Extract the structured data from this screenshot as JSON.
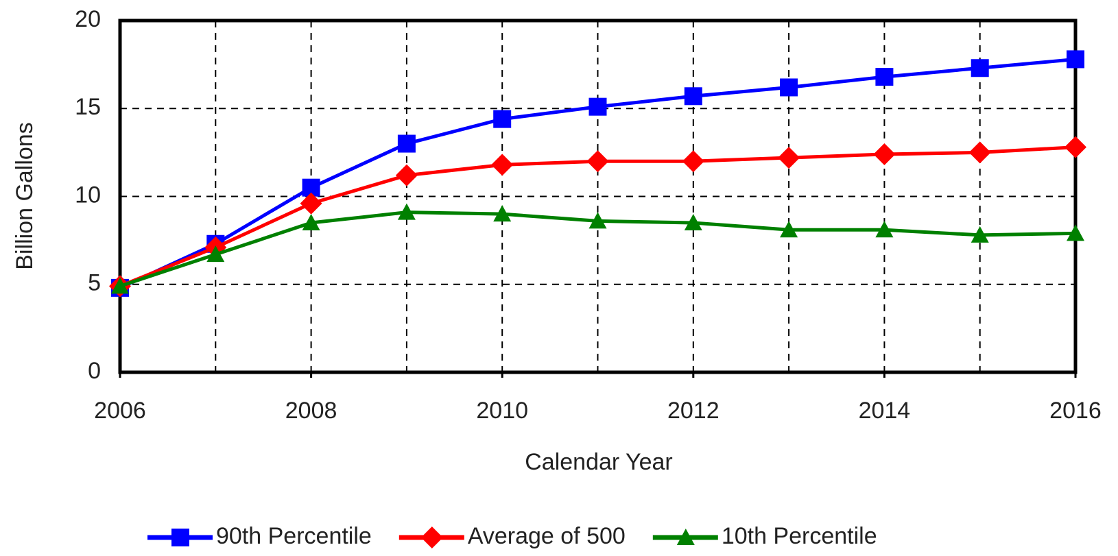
{
  "chart_data": {
    "type": "line",
    "x_label": "Calendar Year",
    "y_label": "Billion Gallons",
    "x": [
      2006,
      2007,
      2008,
      2009,
      2010,
      2011,
      2012,
      2013,
      2014,
      2015,
      2016
    ],
    "series": [
      {
        "name": "90th Percentile",
        "color": "#0000ff",
        "marker": "square",
        "values": [
          4.8,
          7.3,
          10.5,
          13.0,
          14.4,
          15.1,
          15.7,
          16.2,
          16.8,
          17.3,
          17.8
        ]
      },
      {
        "name": "Average of 500",
        "color": "#ff0000",
        "marker": "diamond",
        "values": [
          4.9,
          7.1,
          9.6,
          11.2,
          11.8,
          12.0,
          12.0,
          12.2,
          12.4,
          12.5,
          12.8
        ]
      },
      {
        "name": "10th Percentile",
        "color": "#008000",
        "marker": "triangle",
        "values": [
          4.9,
          6.7,
          8.5,
          9.1,
          9.0,
          8.6,
          8.5,
          8.1,
          8.1,
          7.8,
          7.9
        ]
      }
    ],
    "xlim": [
      2006,
      2016
    ],
    "xticks": [
      2006,
      2008,
      2010,
      2012,
      2014,
      2016
    ],
    "ylim": [
      0,
      20
    ],
    "yticks": [
      0,
      5,
      10,
      15,
      20
    ],
    "grid": true,
    "legend": "bottom"
  }
}
